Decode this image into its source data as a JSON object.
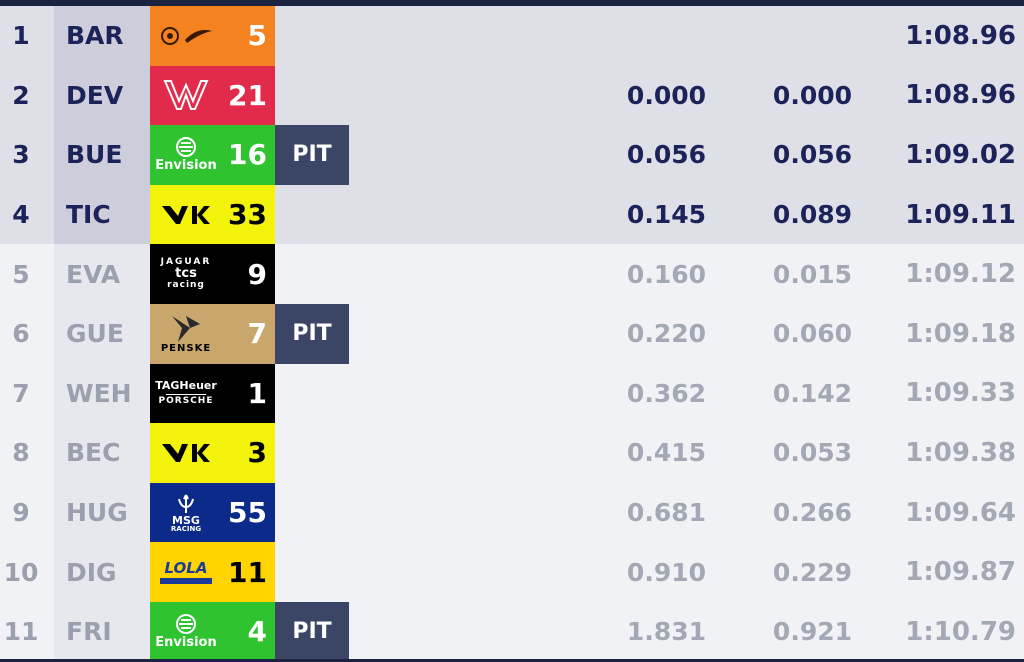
{
  "leaderboard": {
    "rows": [
      {
        "pos": "1",
        "code": "BAR",
        "number": "5",
        "team": "mclaren",
        "color": "#f58220",
        "num_color": "#ffffff",
        "pit": "",
        "gap": "",
        "interval": "",
        "laptime": "1:08.96",
        "active": true
      },
      {
        "pos": "2",
        "code": "DEV",
        "number": "21",
        "team": "mahindra",
        "color": "#e22b4a",
        "num_color": "#ffffff",
        "pit": "",
        "gap": "0.000",
        "interval": "0.000",
        "laptime": "1:08.96",
        "active": true
      },
      {
        "pos": "3",
        "code": "BUE",
        "number": "16",
        "team": "envision",
        "color": "#2fc42f",
        "num_color": "#ffffff",
        "pit": "PIT",
        "gap": "0.056",
        "interval": "0.056",
        "laptime": "1:09.02",
        "active": true
      },
      {
        "pos": "4",
        "code": "TIC",
        "number": "33",
        "team": "kiro",
        "color": "#f2f20a",
        "num_color": "#000000",
        "pit": "",
        "gap": "0.145",
        "interval": "0.089",
        "laptime": "1:09.11",
        "active": true
      },
      {
        "pos": "5",
        "code": "EVA",
        "number": "9",
        "team": "jaguar",
        "color": "#000000",
        "num_color": "#ffffff",
        "pit": "",
        "gap": "0.160",
        "interval": "0.015",
        "laptime": "1:09.12",
        "active": false
      },
      {
        "pos": "6",
        "code": "GUE",
        "number": "7",
        "team": "penske",
        "color": "#c9a66b",
        "num_color": "#ffffff",
        "pit": "PIT",
        "gap": "0.220",
        "interval": "0.060",
        "laptime": "1:09.18",
        "active": false
      },
      {
        "pos": "7",
        "code": "WEH",
        "number": "1",
        "team": "porsche",
        "color": "#000000",
        "num_color": "#ffffff",
        "pit": "",
        "gap": "0.362",
        "interval": "0.142",
        "laptime": "1:09.33",
        "active": false
      },
      {
        "pos": "8",
        "code": "BEC",
        "number": "3",
        "team": "kiro",
        "color": "#f2f20a",
        "num_color": "#000000",
        "pit": "",
        "gap": "0.415",
        "interval": "0.053",
        "laptime": "1:09.38",
        "active": false
      },
      {
        "pos": "9",
        "code": "HUG",
        "number": "55",
        "team": "maserati",
        "color": "#0b2a8a",
        "num_color": "#ffffff",
        "pit": "",
        "gap": "0.681",
        "interval": "0.266",
        "laptime": "1:09.64",
        "active": false
      },
      {
        "pos": "10",
        "code": "DIG",
        "number": "11",
        "team": "lola",
        "color": "#ffd400",
        "num_color": "#000000",
        "pit": "",
        "gap": "0.910",
        "interval": "0.229",
        "laptime": "1:09.87",
        "active": false
      },
      {
        "pos": "11",
        "code": "FRI",
        "number": "4",
        "team": "envision",
        "color": "#2fc42f",
        "num_color": "#ffffff",
        "pit": "PIT",
        "gap": "1.831",
        "interval": "0.921",
        "laptime": "1:10.79",
        "active": false
      }
    ]
  },
  "logos": {
    "envision_text": "Envision",
    "jaguar_lines": [
      "JAGUAR",
      "tcs",
      "racing"
    ],
    "penske_text": "PENSKE",
    "porsche_lines": [
      "TAGHeuer",
      "PORSCHE"
    ],
    "maserati_lines": [
      "MSG",
      "RACING"
    ],
    "lola_text": "LOLA"
  }
}
